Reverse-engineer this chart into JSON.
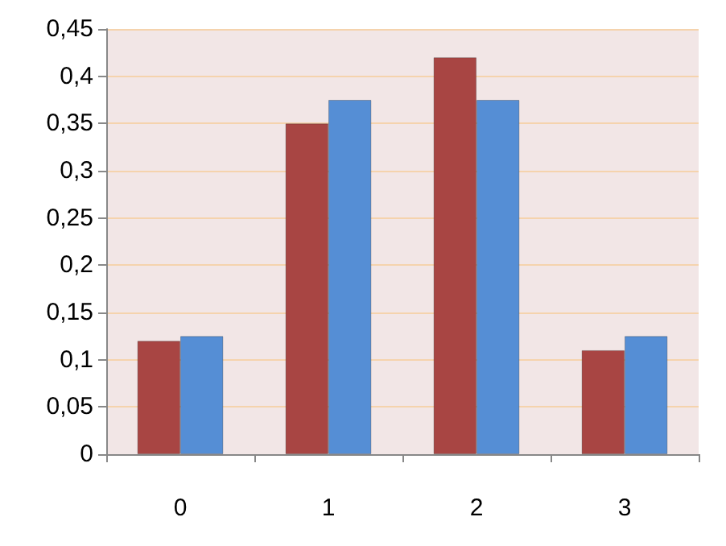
{
  "chart_data": {
    "type": "bar",
    "categories": [
      "0",
      "1",
      "2",
      "3"
    ],
    "series": [
      {
        "color": "#a84543",
        "values": [
          0.12,
          0.35,
          0.42,
          0.11
        ]
      },
      {
        "color": "#558ed5",
        "values": [
          0.125,
          0.375,
          0.375,
          0.125
        ]
      }
    ],
    "ylim": [
      0,
      0.45
    ],
    "yticks": [
      0,
      {
        "value": 0.05,
        "label": "0,05"
      },
      {
        "value": 0.1,
        "label": "0,1"
      },
      {
        "value": 0.15,
        "label": "0,15"
      },
      {
        "value": 0.2,
        "label": "0,2"
      },
      {
        "value": 0.25,
        "label": "0,25"
      },
      {
        "value": 0.3,
        "label": "0,3"
      },
      {
        "value": 0.35,
        "label": "0,35"
      },
      {
        "value": 0.4,
        "label": "0,4"
      },
      {
        "value": 0.45,
        "label": "0,45"
      }
    ],
    "grid": "y"
  }
}
